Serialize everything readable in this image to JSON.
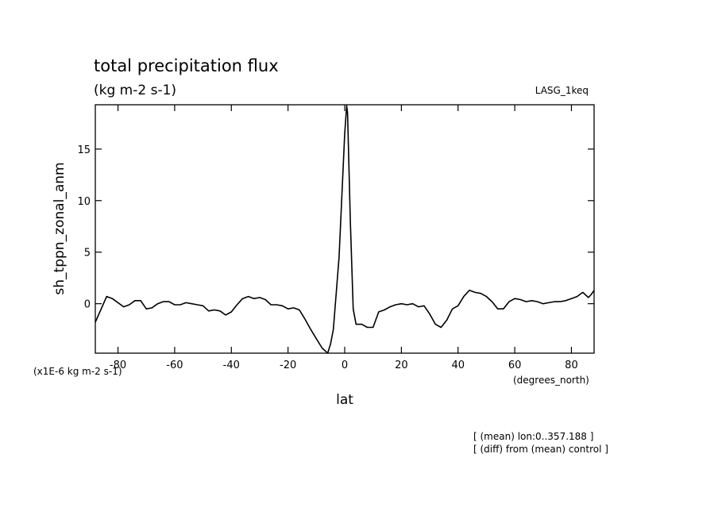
{
  "chart_data": {
    "type": "line",
    "title": "total precipitation flux",
    "subtitle": "(kg m-2 s-1)",
    "experiment_label": "LASG_1keq",
    "xlabel": "lat",
    "x_units": "(degrees_north)",
    "ylabel": "sh_tppn_zonal_anm",
    "y_scale_note": "(x1E-6 kg m-2 s-1)",
    "notes": [
      "[ (mean) lon:0..357.188 ]",
      "[ (diff) from (mean) control ]"
    ],
    "xlim": [
      -88,
      88
    ],
    "ylim": [
      -4.8,
      19.3
    ],
    "x_ticks": [
      -80,
      -60,
      -40,
      -20,
      0,
      20,
      40,
      60,
      80
    ],
    "y_ticks": [
      0,
      5,
      10,
      15
    ],
    "grid": false,
    "series": [
      {
        "x": [
          -88,
          -84,
          -82,
          -78,
          -76,
          -74,
          -72,
          -70,
          -68,
          -66,
          -64,
          -62,
          -60,
          -58,
          -56,
          -54,
          -52,
          -50,
          -48,
          -46,
          -44,
          -42,
          -40,
          -38,
          -36,
          -34,
          -32,
          -30,
          -28,
          -26,
          -24,
          -22,
          -20,
          -18,
          -16,
          -14,
          -12,
          -10,
          -8,
          -6,
          -5,
          -4,
          -2,
          0,
          0.7,
          1,
          2,
          3,
          4,
          6,
          8,
          10,
          12,
          14,
          16,
          18,
          20,
          22,
          24,
          26,
          28,
          30,
          32,
          34,
          36,
          38,
          40,
          42,
          44,
          46,
          48,
          50,
          52,
          54,
          56,
          58,
          60,
          62,
          64,
          66,
          68,
          70,
          72,
          74,
          76,
          78,
          80,
          82,
          84,
          86,
          87,
          88
        ],
        "y": [
          -1.8,
          0.7,
          0.5,
          -0.3,
          -0.1,
          0.3,
          0.3,
          -0.5,
          -0.4,
          0.0,
          0.2,
          0.2,
          -0.1,
          -0.1,
          0.1,
          0.0,
          -0.1,
          -0.2,
          -0.7,
          -0.6,
          -0.7,
          -1.1,
          -0.8,
          -0.1,
          0.5,
          0.7,
          0.5,
          0.6,
          0.4,
          -0.1,
          -0.1,
          -0.2,
          -0.5,
          -0.4,
          -0.6,
          -1.5,
          -2.5,
          -3.4,
          -4.3,
          -4.8,
          -3.9,
          -2.5,
          4.5,
          16.5,
          19.2,
          18.5,
          8.0,
          -0.5,
          -2.0,
          -2.0,
          -2.3,
          -2.3,
          -0.8,
          -0.6,
          -0.3,
          -0.1,
          0.0,
          -0.1,
          0.0,
          -0.3,
          -0.2,
          -1.0,
          -2.0,
          -2.3,
          -1.6,
          -0.5,
          -0.2,
          0.7,
          1.3,
          1.1,
          1.0,
          0.7,
          0.2,
          -0.5,
          -0.5,
          0.2,
          0.5,
          0.4,
          0.2,
          0.3,
          0.2,
          0.0,
          0.1,
          0.2,
          0.2,
          0.3,
          0.5,
          0.7,
          1.1,
          0.6,
          0.9,
          1.3
        ]
      }
    ]
  }
}
